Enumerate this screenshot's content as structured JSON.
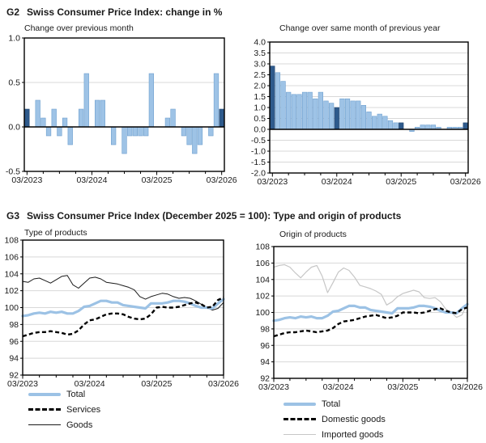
{
  "g2_header": {
    "id": "G2",
    "title": "Swiss Consumer Price Index: change in %"
  },
  "g3_header": {
    "id": "G3",
    "title": "Swiss Consumer Price Index (December 2025 = 100): Type and origin of products"
  },
  "months": [
    "03/2023",
    "04/2023",
    "05/2023",
    "06/2023",
    "07/2023",
    "08/2023",
    "09/2023",
    "10/2023",
    "11/2023",
    "12/2023",
    "01/2024",
    "02/2024",
    "03/2024",
    "04/2024",
    "05/2024",
    "06/2024",
    "07/2024",
    "08/2024",
    "09/2024",
    "10/2024",
    "11/2024",
    "12/2024",
    "01/2025",
    "02/2025",
    "03/2025",
    "04/2025",
    "05/2025",
    "06/2025",
    "07/2025",
    "08/2025",
    "09/2025",
    "10/2025",
    "11/2025",
    "12/2025",
    "01/2026",
    "02/2026",
    "03/2026"
  ],
  "chart_data": [
    {
      "id": "g2-month-on-month",
      "type": "bar",
      "subtitle": "Change over previous month",
      "ylabel": "",
      "ylim": [
        -0.5,
        1.0
      ],
      "yticks": [
        "1.0",
        "0.5",
        "0.0",
        "-0.5"
      ],
      "xtick_indices": [
        0,
        12,
        24,
        36
      ],
      "xticklabels": [
        "03/2023",
        "03/2024",
        "03/2025",
        "03/2026"
      ],
      "minor_xtick_every": 3,
      "grid": true,
      "zero_line": true,
      "highlight_indices": [
        0,
        12,
        24,
        36
      ],
      "values": [
        0.2,
        0.0,
        0.3,
        0.1,
        -0.1,
        0.2,
        -0.1,
        0.1,
        -0.2,
        0.0,
        0.2,
        0.6,
        0.0,
        0.3,
        0.3,
        0.0,
        -0.2,
        0.0,
        -0.3,
        -0.1,
        -0.1,
        -0.1,
        -0.1,
        0.6,
        0.0,
        0.0,
        0.1,
        0.2,
        0.0,
        -0.1,
        -0.2,
        -0.3,
        -0.2,
        0.0,
        -0.1,
        0.6,
        0.2
      ]
    },
    {
      "id": "g2-year-on-year",
      "type": "bar",
      "subtitle": "Change over same month of previous year",
      "ylabel": "",
      "ylim": [
        -2.0,
        4.0
      ],
      "yticks": [
        "4.0",
        "3.5",
        "3.0",
        "2.5",
        "2.0",
        "1.5",
        "1.0",
        "0.5",
        "0.0",
        "-0.5",
        "-1.0",
        "-1.5",
        "-2.0"
      ],
      "xtick_indices": [
        0,
        12,
        24,
        36
      ],
      "xticklabels": [
        "03/2023",
        "03/2024",
        "03/2025",
        "03/2026"
      ],
      "minor_xtick_every": 3,
      "grid": true,
      "zero_line": true,
      "highlight_indices": [
        0,
        12,
        24,
        36
      ],
      "values": [
        2.9,
        2.6,
        2.2,
        1.7,
        1.6,
        1.6,
        1.7,
        1.7,
        1.4,
        1.7,
        1.3,
        1.2,
        1.0,
        1.4,
        1.4,
        1.3,
        1.3,
        1.1,
        0.8,
        0.6,
        0.7,
        0.6,
        0.4,
        0.3,
        0.3,
        0.0,
        -0.1,
        0.1,
        0.2,
        0.2,
        0.2,
        0.1,
        0.0,
        0.1,
        0.1,
        0.1,
        0.3
      ]
    },
    {
      "id": "g3-type-of-products",
      "type": "line",
      "subtitle": "Type of products",
      "ylim": [
        92,
        108
      ],
      "yticks": [
        "108",
        "106",
        "104",
        "102",
        "100",
        "98",
        "96",
        "94",
        "92"
      ],
      "xtick_indices": [
        0,
        12,
        24,
        36
      ],
      "xticklabels": [
        "03/2023",
        "03/2024",
        "03/2025",
        "03/2026"
      ],
      "minor_xtick_every": 3,
      "grid": true,
      "zero_line": false,
      "series": [
        {
          "name": "Total",
          "style": "total",
          "z": 2,
          "values": [
            99.0,
            99.1,
            99.3,
            99.4,
            99.3,
            99.5,
            99.4,
            99.5,
            99.3,
            99.3,
            99.6,
            100.1,
            100.2,
            100.5,
            100.8,
            100.8,
            100.6,
            100.6,
            100.3,
            100.2,
            100.1,
            100.0,
            99.9,
            100.5,
            100.5,
            100.5,
            100.6,
            100.8,
            100.8,
            100.7,
            100.5,
            100.2,
            100.0,
            100.0,
            99.9,
            100.5,
            101.0
          ]
        },
        {
          "name": "Services",
          "style": "dashed-black",
          "z": 3,
          "values": [
            96.6,
            96.8,
            97.0,
            97.1,
            97.1,
            97.2,
            97.1,
            97.0,
            96.8,
            96.9,
            97.3,
            98.0,
            98.5,
            98.6,
            98.9,
            99.2,
            99.3,
            99.3,
            99.2,
            98.9,
            98.7,
            98.6,
            98.7,
            99.2,
            100.0,
            100.1,
            100.0,
            100.0,
            100.1,
            100.3,
            100.5,
            100.6,
            100.4,
            100.0,
            100.1,
            100.9,
            101.2
          ]
        },
        {
          "name": "Goods",
          "style": "thin-black",
          "z": 1,
          "values": [
            103.1,
            103.0,
            103.4,
            103.5,
            103.2,
            102.9,
            103.3,
            103.7,
            103.8,
            102.7,
            102.3,
            102.9,
            103.5,
            103.6,
            103.4,
            103.0,
            102.9,
            102.8,
            102.6,
            102.4,
            102.1,
            101.3,
            101.0,
            101.3,
            101.5,
            101.7,
            101.6,
            101.3,
            101.1,
            101.2,
            101.1,
            100.8,
            100.4,
            100.0,
            99.7,
            99.9,
            100.6
          ]
        }
      ]
    },
    {
      "id": "g3-origin-of-products",
      "type": "line",
      "subtitle": "Origin of products",
      "ylim": [
        92,
        108
      ],
      "yticks": [
        "108",
        "106",
        "104",
        "102",
        "100",
        "98",
        "96",
        "94",
        "92"
      ],
      "xtick_indices": [
        0,
        12,
        24,
        36
      ],
      "xticklabels": [
        "03/2023",
        "03/2024",
        "03/2025",
        "03/2026"
      ],
      "minor_xtick_every": 3,
      "grid": true,
      "zero_line": false,
      "series": [
        {
          "name": "Total",
          "style": "total",
          "z": 2,
          "values": [
            99.0,
            99.1,
            99.3,
            99.4,
            99.3,
            99.5,
            99.4,
            99.5,
            99.3,
            99.3,
            99.6,
            100.1,
            100.2,
            100.5,
            100.8,
            100.8,
            100.6,
            100.6,
            100.3,
            100.2,
            100.1,
            100.0,
            99.9,
            100.5,
            100.5,
            100.5,
            100.6,
            100.8,
            100.8,
            100.7,
            100.5,
            100.2,
            100.0,
            100.0,
            99.9,
            100.5,
            101.0
          ]
        },
        {
          "name": "Domestic goods",
          "style": "dashed-black",
          "z": 3,
          "values": [
            97.1,
            97.3,
            97.5,
            97.6,
            97.6,
            97.7,
            97.8,
            97.7,
            97.6,
            97.7,
            97.8,
            98.1,
            98.6,
            98.9,
            99.0,
            99.1,
            99.3,
            99.5,
            99.6,
            99.7,
            99.5,
            99.3,
            99.4,
            99.6,
            100.0,
            100.0,
            100.0,
            99.9,
            100.0,
            100.2,
            100.4,
            100.5,
            100.2,
            100.0,
            99.9,
            100.4,
            100.6
          ]
        },
        {
          "name": "Imported goods",
          "style": "thin-gray",
          "z": 1,
          "values": [
            105.5,
            105.7,
            105.8,
            105.5,
            104.8,
            104.2,
            104.9,
            105.5,
            105.7,
            104.4,
            102.4,
            103.6,
            104.9,
            105.4,
            105.1,
            104.3,
            103.3,
            103.1,
            102.9,
            102.6,
            102.2,
            100.9,
            101.3,
            101.9,
            102.3,
            102.5,
            102.7,
            102.5,
            101.8,
            101.7,
            101.8,
            101.3,
            100.4,
            100.0,
            99.4,
            99.7,
            101.1
          ]
        }
      ]
    }
  ],
  "colors": {
    "bar_light": "#9EC3E6",
    "bar_light_border": "#6FA0CF",
    "bar_dark": "#2E5A8C",
    "bar_dark_border": "#24476F",
    "grid": "#D8D8D8",
    "axis": "#000000",
    "text": "#1A1A1A"
  },
  "styles": {
    "total": {
      "stroke": "#9CC2E5",
      "width": 3.2
    },
    "dashed-black": {
      "stroke": "#000000",
      "width": 2.4,
      "dash": "5 3.2"
    },
    "thin-black": {
      "stroke": "#1a1a1a",
      "width": 1
    },
    "thin-gray": {
      "stroke": "#C6C6C6",
      "width": 1.2
    }
  }
}
